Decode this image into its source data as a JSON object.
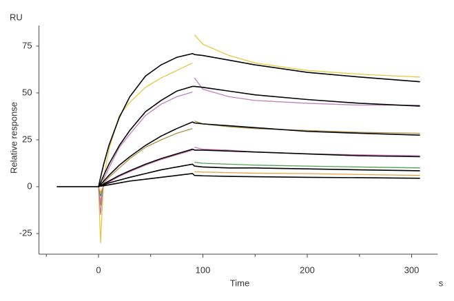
{
  "chart_data": {
    "type": "line",
    "ylabel_unit": "RU",
    "ylabel": "Relative response",
    "xlabel": "Time",
    "xlabel_unit": "s",
    "x": [
      -40,
      0,
      2,
      5,
      10,
      20,
      30,
      45,
      60,
      75,
      90,
      91,
      92,
      100,
      125,
      150,
      200,
      250,
      308
    ],
    "xlim": [
      -57,
      325
    ],
    "ylim": [
      -36,
      86
    ],
    "xticks": [
      0,
      100,
      200,
      300
    ],
    "xminorticks": [
      -50,
      50,
      150,
      250
    ],
    "yticks": [
      -25,
      0,
      25,
      50,
      75
    ],
    "series": [
      {
        "color": "#e8c840",
        "values": [
          null,
          0,
          -30,
          5,
          20,
          38,
          45,
          53,
          58,
          62,
          66,
          null,
          81,
          76,
          70,
          66,
          62,
          60,
          58.5
        ]
      },
      {
        "color": "#c080c0",
        "values": [
          null,
          0,
          -15,
          4,
          10,
          21,
          28,
          38,
          44,
          48,
          50.5,
          null,
          58,
          52,
          48,
          46,
          44.5,
          43.5,
          43.5
        ]
      },
      {
        "color": "#a89040",
        "values": [
          null,
          0,
          -10,
          2,
          5,
          10,
          15,
          21,
          25,
          28.5,
          31,
          null,
          35,
          33.5,
          32,
          31,
          30,
          29,
          28.5
        ]
      },
      {
        "color": "#d070b0",
        "values": [
          null,
          0,
          -8,
          1,
          2.5,
          5.5,
          8,
          11.5,
          14.5,
          17,
          19.5,
          null,
          21,
          20,
          19.5,
          18.5,
          17.5,
          17,
          16.5
        ]
      },
      {
        "color": "#50a050",
        "values": [
          null,
          0,
          -5,
          1,
          2,
          3.5,
          5,
          7,
          9,
          10.5,
          12,
          null,
          13,
          12.5,
          12,
          11.5,
          11,
          10.5,
          10
        ]
      },
      {
        "color": "#f0a040",
        "values": [
          null,
          0,
          -3,
          0.5,
          1,
          2,
          3,
          4,
          5,
          6,
          7,
          null,
          8,
          7.8,
          7.5,
          7.2,
          7,
          6.5,
          6
        ]
      },
      {
        "color": "#000000",
        "values": [
          0,
          0,
          5,
          12,
          22,
          37,
          48,
          59,
          65,
          69,
          71,
          70.8,
          70.5,
          70,
          67.5,
          65,
          61,
          58.5,
          56
        ]
      },
      {
        "color": "#000000",
        "values": [
          null,
          0,
          2,
          6,
          12,
          22,
          30,
          40,
          46,
          51,
          53.5,
          53.5,
          53.5,
          53,
          51,
          49,
          46.5,
          44.5,
          43
        ]
      },
      {
        "color": "#000000",
        "values": [
          null,
          0,
          1,
          3,
          6,
          11.5,
          16,
          22,
          27,
          31,
          34.5,
          34.3,
          34,
          33.5,
          32.5,
          31.5,
          29.5,
          28.5,
          27.5
        ]
      },
      {
        "color": "#000000",
        "values": [
          null,
          0,
          0.5,
          1.5,
          3,
          6,
          8.5,
          12,
          15,
          17.5,
          20,
          19.8,
          19.5,
          19.5,
          19,
          18.5,
          17.5,
          16.5,
          16
        ]
      },
      {
        "color": "#000000",
        "values": [
          null,
          0,
          0.5,
          1,
          2,
          3.5,
          5,
          7,
          9,
          10.5,
          12,
          11.5,
          11,
          10.5,
          10,
          10,
          9.5,
          9,
          8.5
        ]
      },
      {
        "color": "#000000",
        "values": [
          null,
          0,
          0.3,
          0.5,
          1,
          2,
          3,
          4,
          5,
          6,
          7,
          6.5,
          6,
          5.8,
          5.5,
          5.3,
          5,
          4.8,
          4.5
        ]
      }
    ]
  }
}
